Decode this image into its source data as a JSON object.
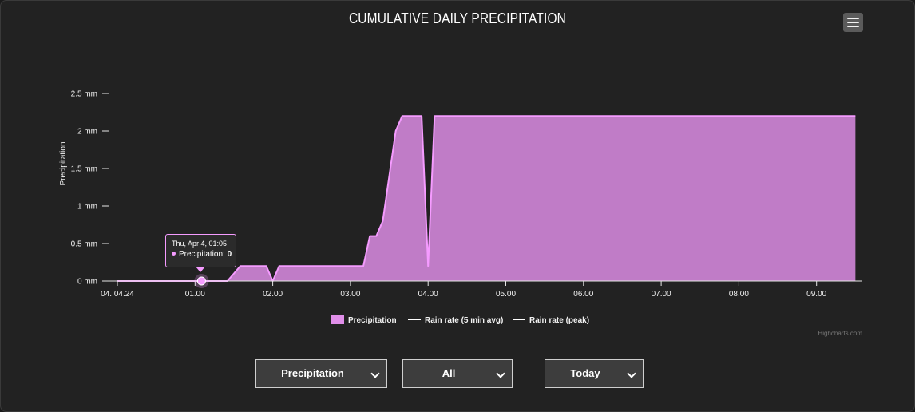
{
  "chart_data": {
    "type": "area",
    "title": "CUMULATIVE DAILY PRECIPITATION",
    "ylabel": "Precipitation",
    "xlabel": "",
    "ylim": [
      0,
      2.5
    ],
    "yticks": [
      "0 mm",
      "0.5 mm",
      "1 mm",
      "1.5 mm",
      "2 mm",
      "2.5 mm"
    ],
    "ytick_values": [
      0,
      0.5,
      1,
      1.5,
      2,
      2.5
    ],
    "xlim": [
      "00:00",
      "09:30"
    ],
    "xticks": [
      "04. 04.24",
      "01.00",
      "02.00",
      "03.00",
      "04.00",
      "05.00",
      "06.00",
      "07.00",
      "08.00",
      "09.00"
    ],
    "xtick_hours": [
      0,
      1,
      2,
      3,
      4,
      5,
      6,
      7,
      8,
      9
    ],
    "grid": false,
    "legend_position": "bottom-center",
    "series": [
      {
        "name": "Precipitation",
        "color": "#f59bff",
        "x": [
          "00:00",
          "01:05",
          "01:25",
          "01:30",
          "01:35",
          "01:55",
          "02:00",
          "02:05",
          "02:10",
          "03:00",
          "03:10",
          "03:15",
          "03:20",
          "03:25",
          "03:30",
          "03:35",
          "03:40",
          "03:45",
          "03:55",
          "04:00",
          "04:05",
          "05:00",
          "06:00",
          "07:00",
          "08:00",
          "09:00",
          "09:30"
        ],
        "values": [
          0,
          0,
          0,
          0.1,
          0.2,
          0.2,
          0,
          0.2,
          0.2,
          0.2,
          0.2,
          0.6,
          0.6,
          0.8,
          1.4,
          2.0,
          2.2,
          2.2,
          2.2,
          0.2,
          2.2,
          2.2,
          2.2,
          2.2,
          2.2,
          2.2,
          2.2
        ]
      },
      {
        "name": "Rain rate (5 min avg)",
        "color": "#ffffff",
        "values": []
      },
      {
        "name": "Rain rate (peak)",
        "color": "#ffffff",
        "values": []
      }
    ],
    "tooltip": {
      "header": "Thu, Apr 4, 01:05",
      "series_label": "Precipitation:",
      "value": "0",
      "hover_x": "01:05",
      "hover_value": 0
    },
    "credits": "Highcharts.com"
  },
  "controls": {
    "selects": [
      {
        "value": "Precipitation"
      },
      {
        "value": "All"
      },
      {
        "value": "Today"
      }
    ]
  },
  "icons": {
    "menu": "hamburger-menu-icon",
    "dropdown": "chevron-down-icon"
  }
}
